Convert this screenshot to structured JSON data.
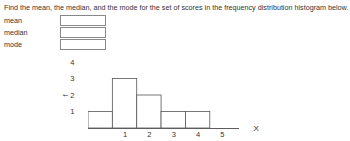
{
  "prompt": {
    "question": "Find the mean, the median, and the mode for the set of scores in the frequency distribution histogram below.",
    "fields": [
      "mean",
      "median",
      "mode"
    ]
  },
  "chart_data": {
    "type": "histogram",
    "bins": [
      -0.5,
      0.5,
      1.5,
      2.5,
      3.5,
      4.5
    ],
    "values": [
      1,
      3,
      2,
      1,
      1
    ],
    "x_label": "X",
    "y_label": "f",
    "xlim": [
      -0.5,
      5.7
    ],
    "xticks": [
      1,
      2,
      3,
      4,
      5
    ],
    "ylim": [
      0,
      4
    ],
    "yticks": [
      1,
      2,
      3,
      4
    ],
    "grid": false
  }
}
